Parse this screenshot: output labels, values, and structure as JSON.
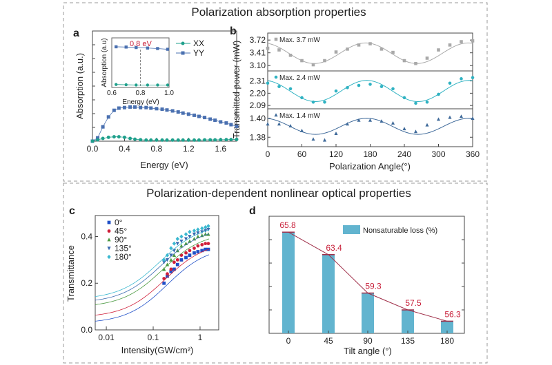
{
  "section_titles": [
    "Polarization absorption properties",
    "Polarization-dependent nonlinear optical properties"
  ],
  "colors": {
    "xx": "#1fa08c",
    "yy": "#4a70b0",
    "b_top": "#a9a9a9",
    "b_mid": "#2fb2c2",
    "b_bot": "#3f6a9a",
    "c_0": "#1f4fc8",
    "c_45": "#d0203a",
    "c_90": "#4c9a42",
    "c_135": "#3a6ab0",
    "c_180": "#3ab8d0",
    "d_bar": "#62b4cf",
    "d_line": "#a0304a",
    "d_label": "#c8203a",
    "inset_note": "#c8203a"
  },
  "chart_data": [
    {
      "panel": "a",
      "type": "line",
      "xlabel": "Energy (eV)",
      "ylabel": "Absorption (a.u.)",
      "xlim": [
        0,
        1.8
      ],
      "ylim": [
        0,
        1
      ],
      "xticks": [
        "0.0",
        "0.4",
        "0.8",
        "1.2",
        "1.6"
      ],
      "legend_position": "top-right",
      "x": [
        0,
        0.065,
        0.13,
        0.2,
        0.27,
        0.33,
        0.4,
        0.47,
        0.53,
        0.6,
        0.67,
        0.73,
        0.8,
        0.87,
        0.93,
        1.0,
        1.07,
        1.13,
        1.2,
        1.27,
        1.33,
        1.4,
        1.47,
        1.53,
        1.6,
        1.67,
        1.73,
        1.8
      ],
      "series": [
        {
          "name": "YY",
          "marker": "square",
          "values": [
            0.0,
            0.03,
            0.13,
            0.22,
            0.28,
            0.3,
            0.305,
            0.31,
            0.31,
            0.305,
            0.305,
            0.3,
            0.295,
            0.29,
            0.283,
            0.275,
            0.265,
            0.255,
            0.245,
            0.235,
            0.225,
            0.215,
            0.2,
            0.19,
            0.175,
            0.165,
            0.15,
            0.135
          ]
        },
        {
          "name": "XX",
          "marker": "circle",
          "values": [
            0.0,
            0.012,
            0.025,
            0.035,
            0.04,
            0.04,
            0.035,
            0.025,
            0.018,
            0.013,
            0.01,
            0.01,
            0.01,
            0.01,
            0.01,
            0.01,
            0.01,
            0.01,
            0.01,
            0.01,
            0.01,
            0.012,
            0.012,
            0.012,
            0.013,
            0.014,
            0.015,
            0.016
          ]
        }
      ],
      "inset": {
        "xlabel": "Energy (eV)",
        "ylabel": "Absorption (a.u)",
        "xlim": [
          0.6,
          1.0
        ],
        "ylim": [
          0,
          1
        ],
        "xticks": [
          "0.6",
          "0.8",
          "1.0"
        ],
        "annotation": "0.8 eV",
        "marker_line_x": 0.8,
        "x": [
          0.63,
          0.7,
          0.77,
          0.85,
          0.92,
          0.99
        ],
        "series": [
          {
            "name": "YY",
            "values": [
              0.82,
              0.815,
              0.805,
              0.795,
              0.785,
              0.77
            ]
          },
          {
            "name": "XX",
            "values": [
              0.06,
              0.055,
              0.05,
              0.05,
              0.05,
              0.05
            ]
          }
        ]
      }
    },
    {
      "panel": "b",
      "type": "scatter",
      "xlabel": "Polarization Angle(°)",
      "ylabel": "Transmitted power (mW)",
      "xlim": [
        0,
        360
      ],
      "xticks": [
        "0",
        "60",
        "120",
        "180",
        "240",
        "300",
        "360"
      ],
      "x": [
        0,
        20,
        40,
        60,
        80,
        100,
        120,
        140,
        160,
        180,
        200,
        220,
        240,
        260,
        280,
        300,
        320,
        340,
        360
      ],
      "subplots": [
        {
          "label": "Max. 3.7 mW",
          "marker": "square",
          "ylim": [
            2.97,
            3.89
          ],
          "yticks": [
            "3.10",
            "3.41",
            "3.72"
          ],
          "values": [
            3.52,
            3.48,
            3.35,
            3.22,
            3.12,
            3.22,
            3.43,
            3.5,
            3.6,
            3.63,
            3.5,
            3.42,
            3.22,
            3.15,
            3.28,
            3.48,
            3.6,
            3.68,
            3.7
          ],
          "fit": {
            "mean": 3.4,
            "amplitude": 0.25,
            "peak_deg": 172
          }
        },
        {
          "label": "Max. 2.4 mW",
          "marker": "circle",
          "ylim": [
            2.06,
            2.4
          ],
          "yticks": [
            "2.09",
            "2.20",
            "2.31"
          ],
          "values": [
            2.29,
            2.26,
            2.24,
            2.16,
            2.12,
            2.12,
            2.22,
            2.25,
            2.27,
            2.28,
            2.26,
            2.24,
            2.16,
            2.11,
            2.12,
            2.19,
            2.29,
            2.33,
            2.34
          ],
          "fit": {
            "mean": 2.22,
            "amplitude": 0.095,
            "peak_deg": 174
          }
        },
        {
          "label": "Max. 1.4 mW",
          "marker": "triangle",
          "ylim": [
            1.37,
            1.41
          ],
          "yticks": [
            "1.38",
            "1.40"
          ],
          "values": [
            1.394,
            1.394,
            1.392,
            1.387,
            1.378,
            1.377,
            1.384,
            1.394,
            1.398,
            1.398,
            1.397,
            1.395,
            1.389,
            1.386,
            1.393,
            1.399,
            1.401,
            1.402,
            1.4
          ],
          "fit": {
            "mean": 1.3915,
            "amplitude": 0.0085,
            "peak_deg": 174
          }
        }
      ]
    },
    {
      "panel": "c",
      "type": "scatter",
      "xlabel": "Intensity(GW/cm²)",
      "ylabel": "Transmittance",
      "x_scale": "log",
      "xlim": [
        0.0058,
        2.5
      ],
      "ylim": [
        0,
        0.49
      ],
      "xticks": [
        "0.01",
        "0.1",
        "1"
      ],
      "yticks": [
        "0.0",
        "0.2",
        "0.4"
      ],
      "legend_position": "top-left",
      "x": [
        0.17,
        0.2,
        0.24,
        0.28,
        0.33,
        0.4,
        0.5,
        0.6,
        0.75,
        0.9,
        1.1,
        1.3,
        1.5
      ],
      "series": [
        {
          "name": "0°",
          "marker": "square",
          "values": [
            0.2,
            0.23,
            0.25,
            0.26,
            0.28,
            0.3,
            0.31,
            0.32,
            0.33,
            0.335,
            0.34,
            0.345,
            0.345
          ],
          "fit": {
            "t_low": 0.028,
            "t_high": 0.36,
            "i_sat": 0.2
          }
        },
        {
          "name": "45°",
          "marker": "circle",
          "values": [
            0.22,
            0.24,
            0.26,
            0.29,
            0.3,
            0.32,
            0.33,
            0.34,
            0.35,
            0.36,
            0.365,
            0.37,
            0.37
          ],
          "fit": {
            "t_low": 0.053,
            "t_high": 0.38,
            "i_sat": 0.18
          }
        },
        {
          "name": "90°",
          "marker": "triangle",
          "values": [
            0.26,
            0.28,
            0.3,
            0.32,
            0.34,
            0.36,
            0.37,
            0.38,
            0.39,
            0.4,
            0.405,
            0.41,
            0.41
          ],
          "fit": {
            "t_low": 0.097,
            "t_high": 0.42,
            "i_sat": 0.16
          }
        },
        {
          "name": "135°",
          "marker": "triangle-down",
          "values": [
            0.29,
            0.3,
            0.32,
            0.34,
            0.37,
            0.38,
            0.39,
            0.4,
            0.41,
            0.415,
            0.42,
            0.425,
            0.43
          ],
          "fit": {
            "t_low": 0.115,
            "t_high": 0.44,
            "i_sat": 0.15
          }
        },
        {
          "name": "180°",
          "marker": "diamond",
          "values": [
            0.3,
            0.32,
            0.35,
            0.37,
            0.39,
            0.4,
            0.41,
            0.42,
            0.425,
            0.43,
            0.435,
            0.44,
            0.445
          ],
          "fit": {
            "t_low": 0.13,
            "t_high": 0.455,
            "i_sat": 0.14
          }
        }
      ]
    },
    {
      "panel": "d",
      "type": "bar",
      "xlabel": "Tilt angle (°)",
      "ylabel": "",
      "categories": [
        "0",
        "45",
        "90",
        "135",
        "180"
      ],
      "ylim": [
        55,
        67.5
      ],
      "legend_position": "top-right",
      "series": [
        {
          "name": "Nonsaturable loss (%)",
          "values": [
            65.8,
            63.4,
            59.3,
            57.5,
            56.3
          ]
        }
      ],
      "data_labels": [
        "65.8",
        "63.4",
        "59.3",
        "57.5",
        "56.3"
      ]
    }
  ]
}
